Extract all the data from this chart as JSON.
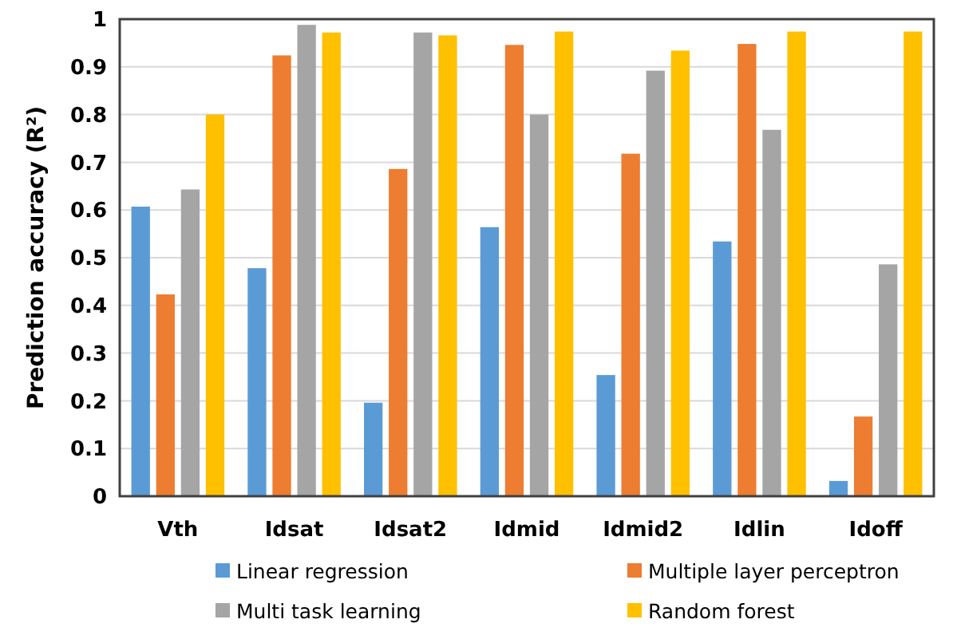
{
  "chart_data": {
    "type": "bar",
    "ylabel": "Prediction accuracy (R²)",
    "categories": [
      "Vth",
      "Idsat",
      "Idsat2",
      "Idmid",
      "Idmid2",
      "Idlin",
      "Idoff"
    ],
    "series": [
      {
        "name": "Linear regression",
        "color": "#5b9bd5",
        "values": [
          0.607,
          0.478,
          0.196,
          0.564,
          0.254,
          0.534,
          0.032
        ]
      },
      {
        "name": "Multiple layer perceptron",
        "color": "#ed7d31",
        "values": [
          0.423,
          0.924,
          0.686,
          0.946,
          0.718,
          0.948,
          0.167
        ]
      },
      {
        "name": "Multi task learning",
        "color": "#a5a5a5",
        "values": [
          0.643,
          0.988,
          0.972,
          0.8,
          0.892,
          0.768,
          0.486
        ]
      },
      {
        "name": "Random forest",
        "color": "#ffc000",
        "values": [
          0.8,
          0.972,
          0.966,
          0.974,
          0.934,
          0.974,
          0.974
        ]
      }
    ],
    "ylim": [
      0,
      1
    ],
    "yticks": [
      0,
      0.1,
      0.2,
      0.3,
      0.4,
      0.5,
      0.6,
      0.7,
      0.8,
      0.9,
      1
    ],
    "grid": "y",
    "legend": "bottom"
  }
}
